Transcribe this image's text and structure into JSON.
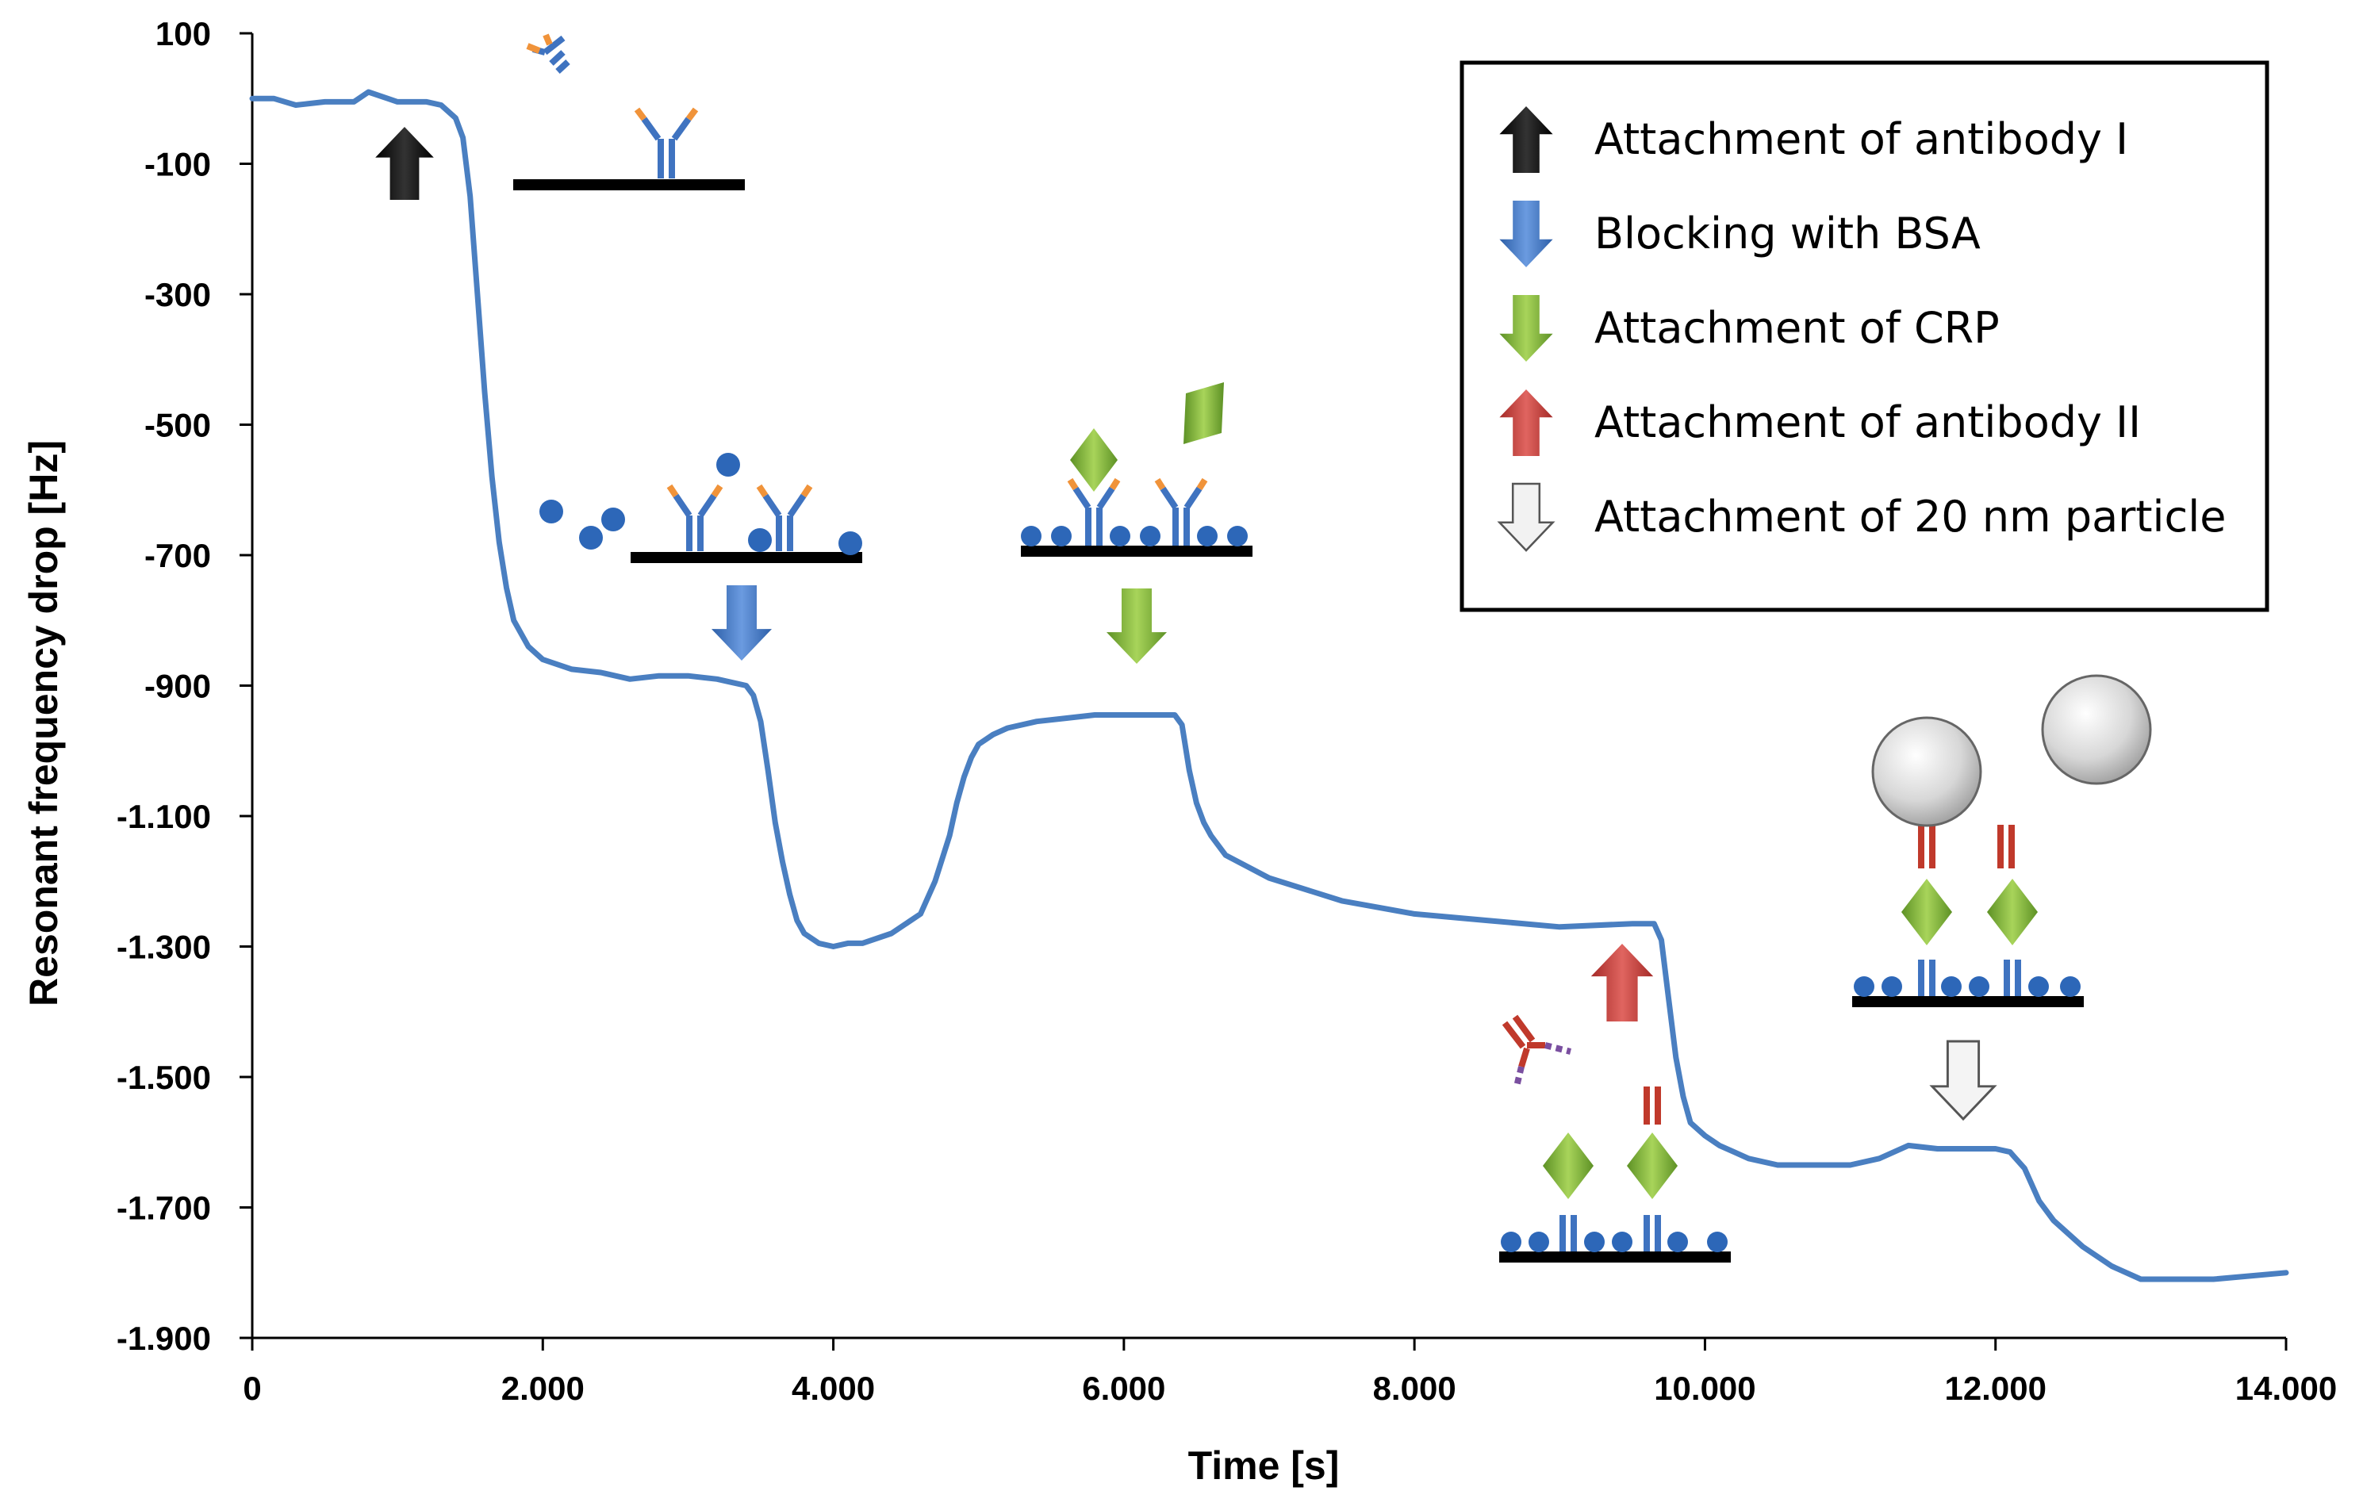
{
  "chart_data": {
    "type": "line",
    "title": "",
    "xlabel": "Time [s]",
    "ylabel": "Resonant frequency drop [Hz]",
    "xlim": [
      0,
      14000
    ],
    "ylim": [
      -1900,
      100
    ],
    "x_ticks": [
      0,
      2000,
      4000,
      6000,
      8000,
      10000,
      12000,
      14000
    ],
    "x_tick_labels": [
      "0",
      "2.000",
      "4.000",
      "6.000",
      "8.000",
      "10.000",
      "12.000",
      "14.000"
    ],
    "y_ticks": [
      100,
      -100,
      -300,
      -500,
      -700,
      -900,
      -1100,
      -1300,
      -1500,
      -1700,
      -1900
    ],
    "y_tick_labels": [
      "100",
      "-100",
      "-300",
      "-500",
      "-700",
      "-900",
      "-1.100",
      "-1.300",
      "-1.500",
      "-1.700",
      "-1.900"
    ],
    "grid": false,
    "legend_position": "top-right",
    "series": [
      {
        "name": "Resonant frequency",
        "color": "#4a7fc1",
        "x": [
          0,
          150,
          300,
          500,
          700,
          800,
          1000,
          1200,
          1300,
          1400,
          1450,
          1500,
          1550,
          1600,
          1650,
          1700,
          1750,
          1800,
          1900,
          2000,
          2200,
          2400,
          2600,
          2800,
          3000,
          3200,
          3300,
          3400,
          3450,
          3500,
          3550,
          3600,
          3650,
          3700,
          3750,
          3800,
          3900,
          4000,
          4100,
          4200,
          4400,
          4600,
          4700,
          4800,
          4850,
          4900,
          4950,
          5000,
          5100,
          5200,
          5400,
          5600,
          5800,
          6000,
          6200,
          6350,
          6400,
          6450,
          6500,
          6550,
          6600,
          6700,
          7000,
          7500,
          8000,
          8500,
          9000,
          9500,
          9650,
          9700,
          9750,
          9800,
          9850,
          9900,
          10000,
          10100,
          10200,
          10300,
          10500,
          10800,
          11000,
          11200,
          11400,
          11600,
          11800,
          12000,
          12100,
          12200,
          12300,
          12400,
          12600,
          12800,
          13000,
          13500,
          14000
        ],
        "values": [
          0,
          0,
          -10,
          -5,
          -5,
          10,
          -5,
          -5,
          -10,
          -30,
          -60,
          -150,
          -300,
          -450,
          -580,
          -680,
          -750,
          -800,
          -840,
          -860,
          -875,
          -880,
          -890,
          -885,
          -885,
          -890,
          -895,
          -900,
          -915,
          -955,
          -1030,
          -1110,
          -1170,
          -1220,
          -1260,
          -1280,
          -1295,
          -1300,
          -1295,
          -1295,
          -1280,
          -1250,
          -1200,
          -1130,
          -1080,
          -1040,
          -1010,
          -990,
          -975,
          -965,
          -955,
          -950,
          -945,
          -945,
          -945,
          -945,
          -960,
          -1030,
          -1080,
          -1110,
          -1130,
          -1160,
          -1195,
          -1230,
          -1250,
          -1260,
          -1270,
          -1265,
          -1265,
          -1290,
          -1380,
          -1470,
          -1530,
          -1570,
          -1590,
          -1605,
          -1615,
          -1625,
          -1635,
          -1635,
          -1635,
          -1625,
          -1605,
          -1610,
          -1610,
          -1610,
          -1615,
          -1640,
          -1690,
          -1720,
          -1760,
          -1790,
          -1810,
          -1810,
          -1800
        ]
      }
    ]
  },
  "legend": [
    {
      "label": "Attachment  of antibody I",
      "arrow": "up",
      "color": "#000000"
    },
    {
      "label": "Blocking with BSA",
      "arrow": "down",
      "color": "#3d74c0"
    },
    {
      "label": "Attachment  of CRP",
      "arrow": "down",
      "color": "#7aaf33"
    },
    {
      "label": "Attachment  of antibody II",
      "arrow": "up",
      "color": "#c83a35"
    },
    {
      "label": "Attachment  of 20 nm particle",
      "arrow": "down",
      "color": "#f2f2f2"
    }
  ],
  "icons": {
    "antibody_arrow": "black-up-arrow-icon",
    "bsa_arrow": "blue-down-arrow-icon",
    "crp_arrow": "green-down-arrow-icon",
    "antibody2_arrow": "red-up-arrow-icon",
    "particle_arrow": "white-down-arrow-icon"
  }
}
